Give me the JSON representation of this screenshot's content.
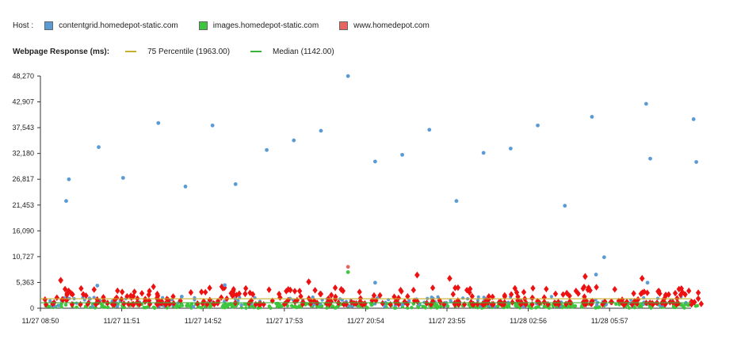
{
  "host_label": "Host :",
  "hosts": [
    {
      "name": "contentgrid.homedepot-static.com",
      "color": "#5b9bd5"
    },
    {
      "name": "images.homedepot-static.com",
      "color": "#3ec63e"
    },
    {
      "name": "www.homedepot.com",
      "color": "#e8645f"
    }
  ],
  "response_label": "Webpage Response (ms):",
  "lines": [
    {
      "name": "75 Percentile (1963.00)",
      "color": "#c4b02a"
    },
    {
      "name": "Median (1142.00)",
      "color": "#38b538"
    }
  ],
  "chart_data": {
    "type": "scatter",
    "ylabel": "",
    "ylim": [
      0,
      48270
    ],
    "y_ticks": [
      "0",
      "5,363",
      "10,727",
      "16,090",
      "21,453",
      "26,817",
      "32,180",
      "37,543",
      "42,907",
      "48,270"
    ],
    "x_ticks": [
      "11/27 08:50",
      "11/27 11:51",
      "11/27 14:52",
      "11/27 17:53",
      "11/27 20:54",
      "11/27 23:55",
      "11/28 02:56",
      "11/28 05:57"
    ],
    "x_tick_pos": [
      0,
      3,
      6,
      9,
      12,
      15,
      18,
      21
    ],
    "x_range": [
      0,
      24.5
    ],
    "percentile_75": 1963.0,
    "median": 1142.0,
    "series": [
      {
        "name": "contentgrid.homedepot-static.com",
        "color": "#5b9bd5",
        "shape": "circle",
        "outliers": [
          [
            0.95,
            22300
          ],
          [
            1.05,
            26800
          ],
          [
            2.15,
            33500
          ],
          [
            2.1,
            4700
          ],
          [
            3.05,
            27100
          ],
          [
            4.35,
            38500
          ],
          [
            5.35,
            25300
          ],
          [
            6.35,
            38000
          ],
          [
            6.8,
            4800
          ],
          [
            7.2,
            25800
          ],
          [
            8.35,
            32900
          ],
          [
            9.35,
            34900
          ],
          [
            10.35,
            36900
          ],
          [
            11.35,
            48270
          ],
          [
            12.35,
            30500
          ],
          [
            12.35,
            5300
          ],
          [
            13.35,
            31900
          ],
          [
            14.35,
            37100
          ],
          [
            15.35,
            22300
          ],
          [
            16.35,
            32300
          ],
          [
            17.35,
            33200
          ],
          [
            18.35,
            38000
          ],
          [
            19.35,
            21300
          ],
          [
            20.35,
            39800
          ],
          [
            20.5,
            7000
          ],
          [
            20.8,
            10600
          ],
          [
            22.35,
            42500
          ],
          [
            22.5,
            31100
          ],
          [
            22.4,
            5300
          ],
          [
            24.1,
            39300
          ],
          [
            24.2,
            30400
          ]
        ],
        "baseline_range": [
          300,
          2500
        ]
      },
      {
        "name": "images.homedepot-static.com",
        "color": "#3ec63e",
        "shape": "circle",
        "outliers": [
          [
            11.35,
            7500
          ]
        ],
        "baseline_range": [
          50,
          1000
        ]
      },
      {
        "name": "www.homedepot.com",
        "color": "#e8645f",
        "shape": "diamond",
        "marker_color": "#ee1111",
        "outliers": [
          [
            11.35,
            8600
          ],
          [
            0.75,
            5800
          ],
          [
            9.9,
            5500
          ],
          [
            13.9,
            6900
          ],
          [
            15.1,
            6200
          ],
          [
            20.1,
            6600
          ],
          [
            22.2,
            6200
          ],
          [
            11.1,
            3900
          ]
        ],
        "baseline_range": [
          800,
          4500
        ]
      }
    ]
  }
}
